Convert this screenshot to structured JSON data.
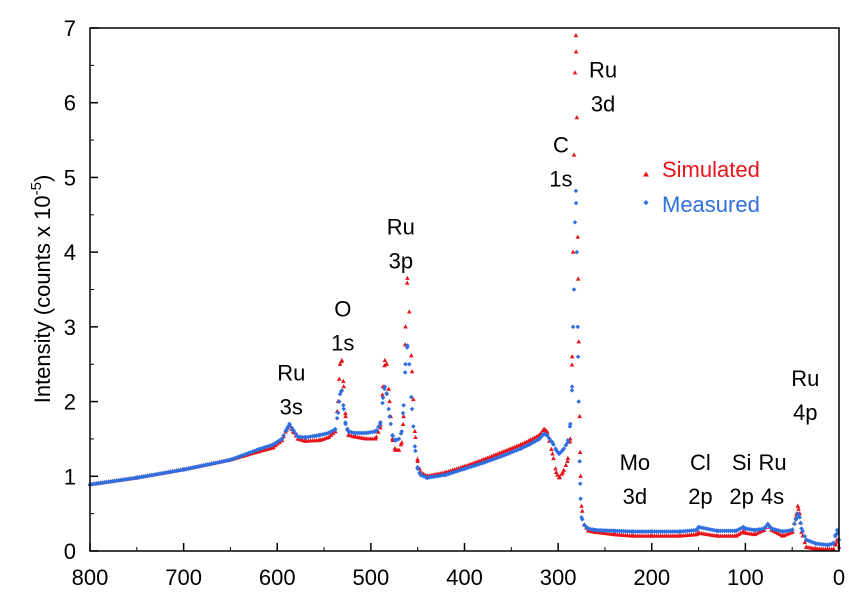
{
  "chart_data": {
    "type": "scatter",
    "title": "",
    "xlabel": "",
    "ylabel": "Intensity (counts x 10",
    "ylabel_exponent": "-5",
    "ylabel_close": ")",
    "xlim": [
      800,
      0
    ],
    "ylim": [
      0,
      7
    ],
    "x_reversed": true,
    "grid": false,
    "legend_position": "upper-right",
    "x_ticks": [
      "800",
      "700",
      "600",
      "500",
      "400",
      "300",
      "200",
      "100",
      "0"
    ],
    "y_ticks": [
      "0",
      "1",
      "2",
      "3",
      "4",
      "5",
      "6",
      "7"
    ],
    "colors": {
      "simulated": "#e8141b",
      "measured": "#2f6fe0"
    },
    "series": [
      {
        "name": "Simulated",
        "marker": "triangle",
        "anchors": [
          [
            800,
            0.89
          ],
          [
            750,
            0.98
          ],
          [
            700,
            1.09
          ],
          [
            650,
            1.22
          ],
          [
            620,
            1.33
          ],
          [
            605,
            1.38
          ],
          [
            595,
            1.48
          ],
          [
            590,
            1.62
          ],
          [
            587,
            1.68
          ],
          [
            583,
            1.6
          ],
          [
            578,
            1.5
          ],
          [
            570,
            1.47
          ],
          [
            555,
            1.48
          ],
          [
            545,
            1.52
          ],
          [
            538,
            1.6
          ],
          [
            535,
            2.0
          ],
          [
            533,
            2.5
          ],
          [
            531,
            2.55
          ],
          [
            529,
            2.2
          ],
          [
            527,
            1.8
          ],
          [
            524,
            1.55
          ],
          [
            518,
            1.53
          ],
          [
            505,
            1.5
          ],
          [
            495,
            1.5
          ],
          [
            490,
            1.65
          ],
          [
            487,
            2.2
          ],
          [
            485,
            2.55
          ],
          [
            483,
            2.5
          ],
          [
            480,
            2.0
          ],
          [
            477,
            1.5
          ],
          [
            474,
            1.35
          ],
          [
            470,
            1.35
          ],
          [
            467,
            1.45
          ],
          [
            465,
            1.8
          ],
          [
            463,
            3.0
          ],
          [
            461,
            3.65
          ],
          [
            459,
            3.2
          ],
          [
            456,
            2.4
          ],
          [
            453,
            1.6
          ],
          [
            450,
            1.2
          ],
          [
            447,
            1.05
          ],
          [
            440,
            1.0
          ],
          [
            420,
            1.05
          ],
          [
            400,
            1.13
          ],
          [
            380,
            1.22
          ],
          [
            360,
            1.32
          ],
          [
            340,
            1.42
          ],
          [
            330,
            1.48
          ],
          [
            320,
            1.55
          ],
          [
            315,
            1.63
          ],
          [
            312,
            1.6
          ],
          [
            306,
            1.3
          ],
          [
            302,
            1.05
          ],
          [
            299,
            0.98
          ],
          [
            295,
            1.05
          ],
          [
            290,
            1.2
          ],
          [
            287,
            1.5
          ],
          [
            285,
            2.6
          ],
          [
            284,
            4.0
          ],
          [
            283,
            5.3
          ],
          [
            282,
            6.4
          ],
          [
            281,
            6.9
          ],
          [
            280,
            5.8
          ],
          [
            279,
            4.2
          ],
          [
            278,
            2.8
          ],
          [
            277,
            1.8
          ],
          [
            276,
            1.0
          ],
          [
            275,
            0.6
          ],
          [
            272,
            0.35
          ],
          [
            268,
            0.27
          ],
          [
            260,
            0.25
          ],
          [
            240,
            0.22
          ],
          [
            220,
            0.2
          ],
          [
            200,
            0.2
          ],
          [
            170,
            0.2
          ],
          [
            152,
            0.22
          ],
          [
            150,
            0.24
          ],
          [
            130,
            0.2
          ],
          [
            110,
            0.2
          ],
          [
            102,
            0.26
          ],
          [
            100,
            0.24
          ],
          [
            90,
            0.22
          ],
          [
            80,
            0.28
          ],
          [
            76,
            0.36
          ],
          [
            72,
            0.28
          ],
          [
            60,
            0.2
          ],
          [
            50,
            0.25
          ],
          [
            46,
            0.45
          ],
          [
            44,
            0.6
          ],
          [
            42,
            0.5
          ],
          [
            40,
            0.25
          ],
          [
            35,
            0.05
          ],
          [
            25,
            0.03
          ],
          [
            12,
            0.02
          ],
          [
            6,
            0.02
          ],
          [
            4,
            0.08
          ],
          [
            2,
            0.15
          ],
          [
            0,
            0.05
          ]
        ]
      },
      {
        "name": "Measured",
        "marker": "diamond",
        "anchors": [
          [
            800,
            0.89
          ],
          [
            750,
            0.98
          ],
          [
            700,
            1.09
          ],
          [
            650,
            1.22
          ],
          [
            620,
            1.36
          ],
          [
            605,
            1.42
          ],
          [
            595,
            1.5
          ],
          [
            590,
            1.63
          ],
          [
            587,
            1.7
          ],
          [
            583,
            1.62
          ],
          [
            578,
            1.53
          ],
          [
            570,
            1.52
          ],
          [
            555,
            1.55
          ],
          [
            545,
            1.58
          ],
          [
            538,
            1.63
          ],
          [
            535,
            1.85
          ],
          [
            533,
            2.1
          ],
          [
            531,
            2.15
          ],
          [
            529,
            1.9
          ],
          [
            527,
            1.7
          ],
          [
            524,
            1.6
          ],
          [
            518,
            1.58
          ],
          [
            505,
            1.58
          ],
          [
            495,
            1.6
          ],
          [
            490,
            1.7
          ],
          [
            487,
            2.05
          ],
          [
            485,
            2.2
          ],
          [
            483,
            2.1
          ],
          [
            480,
            1.8
          ],
          [
            477,
            1.55
          ],
          [
            474,
            1.48
          ],
          [
            470,
            1.5
          ],
          [
            467,
            1.6
          ],
          [
            465,
            1.95
          ],
          [
            463,
            2.5
          ],
          [
            461,
            2.75
          ],
          [
            459,
            2.5
          ],
          [
            456,
            1.9
          ],
          [
            453,
            1.4
          ],
          [
            450,
            1.1
          ],
          [
            447,
            1.02
          ],
          [
            440,
            0.98
          ],
          [
            420,
            1.02
          ],
          [
            400,
            1.1
          ],
          [
            380,
            1.18
          ],
          [
            360,
            1.27
          ],
          [
            340,
            1.37
          ],
          [
            330,
            1.43
          ],
          [
            320,
            1.5
          ],
          [
            315,
            1.57
          ],
          [
            312,
            1.55
          ],
          [
            306,
            1.45
          ],
          [
            302,
            1.35
          ],
          [
            299,
            1.3
          ],
          [
            295,
            1.35
          ],
          [
            290,
            1.45
          ],
          [
            287,
            1.7
          ],
          [
            285,
            2.2
          ],
          [
            284,
            3.0
          ],
          [
            283,
            3.5
          ],
          [
            282,
            4.4
          ],
          [
            281,
            4.82
          ],
          [
            280,
            4.0
          ],
          [
            279,
            3.0
          ],
          [
            278,
            2.0
          ],
          [
            277,
            1.2
          ],
          [
            276,
            0.7
          ],
          [
            275,
            0.45
          ],
          [
            272,
            0.35
          ],
          [
            268,
            0.3
          ],
          [
            260,
            0.28
          ],
          [
            240,
            0.27
          ],
          [
            220,
            0.26
          ],
          [
            200,
            0.26
          ],
          [
            170,
            0.26
          ],
          [
            152,
            0.28
          ],
          [
            150,
            0.32
          ],
          [
            130,
            0.27
          ],
          [
            110,
            0.27
          ],
          [
            102,
            0.32
          ],
          [
            100,
            0.3
          ],
          [
            90,
            0.28
          ],
          [
            80,
            0.3
          ],
          [
            76,
            0.36
          ],
          [
            72,
            0.3
          ],
          [
            60,
            0.26
          ],
          [
            50,
            0.28
          ],
          [
            46,
            0.42
          ],
          [
            44,
            0.5
          ],
          [
            42,
            0.45
          ],
          [
            40,
            0.3
          ],
          [
            35,
            0.15
          ],
          [
            25,
            0.1
          ],
          [
            12,
            0.08
          ],
          [
            6,
            0.1
          ],
          [
            4,
            0.2
          ],
          [
            2,
            0.28
          ],
          [
            0,
            0.15
          ]
        ]
      }
    ],
    "peak_labels": [
      {
        "lines": [
          "Ru",
          "3s"
        ],
        "x": 585,
        "y": 1.75
      },
      {
        "lines": [
          "O",
          "1s"
        ],
        "x": 530,
        "y": 2.6
      },
      {
        "lines": [
          "Ru",
          "3p"
        ],
        "x": 468,
        "y": 3.7
      },
      {
        "lines": [
          "C",
          "1s"
        ],
        "x": 297,
        "y": 4.8
      },
      {
        "lines": [
          "Ru",
          "3d"
        ],
        "x": 252,
        "y": 5.8
      },
      {
        "lines": [
          "Mo",
          "3d"
        ],
        "x": 218,
        "y": 0.55
      },
      {
        "lines": [
          "Cl",
          "2p"
        ],
        "x": 148,
        "y": 0.55
      },
      {
        "lines": [
          "Si",
          "2p"
        ],
        "x": 104,
        "y": 0.55
      },
      {
        "lines": [
          "Ru",
          "4s"
        ],
        "x": 71,
        "y": 0.55
      },
      {
        "lines": [
          "Ru",
          "4p"
        ],
        "x": 36,
        "y": 1.67
      }
    ]
  }
}
